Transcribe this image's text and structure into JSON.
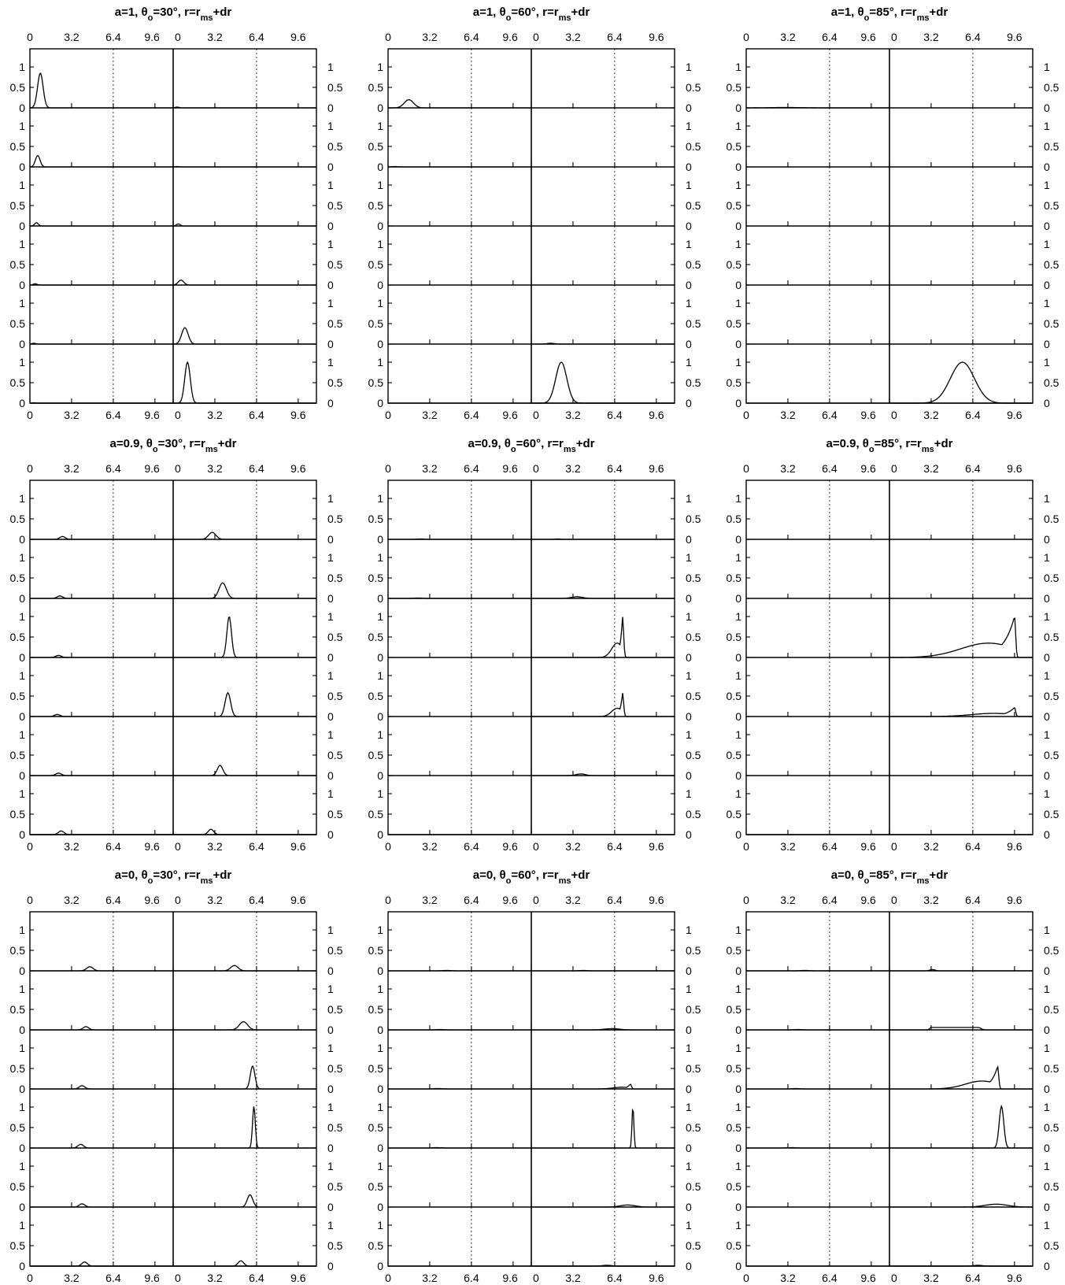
{
  "chart_data": {
    "type": "line",
    "title_template": "a={a}, θo={theta}°, r=rms+dr",
    "x_ticks": [
      "0",
      "3.2",
      "6.4",
      "9.6"
    ],
    "y_ticks": [
      "0",
      "0.5",
      "1"
    ],
    "xlim": [
      0,
      11
    ],
    "ylim": [
      0,
      1.4
    ],
    "gridline_x": 6.4,
    "rows_per_column": 6,
    "panels": [
      {
        "a": "1",
        "theta": "30",
        "title": "a=1, θ",
        "title_sub": "o",
        "title_rest": "=30°, r=r",
        "title_sub2": "ms",
        "title_end": "+dr",
        "curves": {
          "left": [
            [
              0.8,
              0.85,
              0.3
            ],
            [
              0.6,
              0.28,
              0.25
            ],
            [
              0.5,
              0.08,
              0.2
            ],
            [
              0.4,
              0.03,
              0.2
            ],
            [
              0.3,
              0.02,
              0.2
            ],
            [
              0.3,
              0.01,
              0.2
            ]
          ],
          "right": [
            [
              0.3,
              0.02,
              0.2
            ],
            [
              0.3,
              0.01,
              0.2
            ],
            [
              0.4,
              0.05,
              0.2
            ],
            [
              0.6,
              0.12,
              0.3
            ],
            [
              0.9,
              0.4,
              0.35
            ],
            [
              1.1,
              1.0,
              0.3
            ]
          ]
        }
      },
      {
        "a": "1",
        "theta": "60",
        "title": "a=1, θ",
        "title_sub": "o",
        "title_rest": "=60°, r=r",
        "title_sub2": "ms",
        "title_end": "+dr",
        "curves": {
          "left": [
            [
              1.6,
              0.2,
              0.5
            ],
            [
              0.5,
              0.01,
              0.3
            ],
            [
              0,
              0,
              0
            ],
            [
              0,
              0,
              0
            ],
            [
              0,
              0,
              0
            ],
            [
              0,
              0,
              0
            ]
          ],
          "right": [
            [
              0,
              0,
              0
            ],
            [
              0,
              0,
              0
            ],
            [
              0,
              0,
              0
            ],
            [
              0,
              0,
              0
            ],
            [
              1.5,
              0.02,
              0.4
            ],
            [
              2.3,
              1.0,
              0.6
            ]
          ]
        }
      },
      {
        "a": "1",
        "theta": "85",
        "title": "a=1, θ",
        "title_sub": "o",
        "title_rest": "=85°, r=r",
        "title_sub2": "ms",
        "title_end": "+dr",
        "curves": {
          "left": [
            [
              3.0,
              0.01,
              1.5
            ],
            [
              0,
              0,
              0
            ],
            [
              0,
              0,
              0
            ],
            [
              0,
              0,
              0
            ],
            [
              0,
              0,
              0
            ],
            [
              0,
              0,
              0
            ]
          ],
          "right": [
            [
              0,
              0,
              0
            ],
            [
              0,
              0,
              0
            ],
            [
              0,
              0,
              0
            ],
            [
              0,
              0,
              0
            ],
            [
              0,
              0,
              0
            ],
            [
              5.6,
              1.0,
              1.3
            ]
          ]
        }
      },
      {
        "a": "0.9",
        "theta": "30",
        "title": "a=0.9, θ",
        "title_sub": "o",
        "title_rest": "=30°, r=r",
        "title_sub2": "ms",
        "title_end": "+dr",
        "curves": {
          "left": [
            [
              2.5,
              0.07,
              0.3
            ],
            [
              2.3,
              0.06,
              0.3
            ],
            [
              2.2,
              0.05,
              0.3
            ],
            [
              2.1,
              0.05,
              0.3
            ],
            [
              2.2,
              0.06,
              0.3
            ],
            [
              2.4,
              0.09,
              0.3
            ]
          ],
          "right": [
            [
              3.0,
              0.17,
              0.4
            ],
            [
              3.8,
              0.38,
              0.4
            ],
            [
              4.3,
              1.0,
              0.25
            ],
            [
              4.2,
              0.58,
              0.3
            ],
            [
              3.6,
              0.25,
              0.3
            ],
            [
              2.9,
              0.13,
              0.3
            ]
          ]
        }
      },
      {
        "a": "0.9",
        "theta": "60",
        "title": "a=0.9, θ",
        "title_sub": "o",
        "title_rest": "=60°, r=r",
        "title_sub2": "ms",
        "title_end": "+dr",
        "curves": {
          "left": [
            [
              2.5,
              0.01,
              0.4
            ],
            [
              2.3,
              0.01,
              0.4
            ],
            [
              0,
              0,
              0
            ],
            [
              0,
              0,
              0
            ],
            [
              0,
              0,
              0
            ],
            [
              0,
              0,
              0
            ]
          ],
          "right": [
            [
              2.0,
              0.01,
              0.3
            ],
            [
              3.5,
              0.04,
              0.6
            ],
            [
              7.0,
              1.0,
              0.5,
              "skew"
            ],
            [
              7.0,
              0.58,
              0.5,
              "skew"
            ],
            [
              3.8,
              0.04,
              0.5
            ],
            [
              0,
              0,
              0
            ]
          ]
        }
      },
      {
        "a": "0.9",
        "theta": "85",
        "title": "a=0.9, θ",
        "title_sub": "o",
        "title_rest": "=85°, r=r",
        "title_sub2": "ms",
        "title_end": "+dr",
        "curves": {
          "left": [
            [
              0,
              0,
              0
            ],
            [
              0,
              0,
              0
            ],
            [
              0,
              0,
              0
            ],
            [
              0,
              0,
              0
            ],
            [
              0,
              0,
              0
            ],
            [
              0,
              0,
              0
            ]
          ],
          "right": [
            [
              0,
              0,
              0
            ],
            [
              0,
              0,
              0
            ],
            [
              9.6,
              1.0,
              2.5,
              "skew"
            ],
            [
              9.6,
              0.22,
              2.0,
              "skew"
            ],
            [
              0,
              0,
              0
            ],
            [
              0,
              0,
              0
            ]
          ]
        }
      },
      {
        "a": "0",
        "theta": "30",
        "title": "a=0, θ",
        "title_sub": "o",
        "title_rest": "=30°, r=r",
        "title_sub2": "ms",
        "title_end": "+dr",
        "curves": {
          "left": [
            [
              4.6,
              0.1,
              0.35
            ],
            [
              4.3,
              0.08,
              0.3
            ],
            [
              4.0,
              0.08,
              0.3
            ],
            [
              3.9,
              0.09,
              0.3
            ],
            [
              4.0,
              0.08,
              0.3
            ],
            [
              4.2,
              0.1,
              0.3
            ]
          ],
          "right": [
            [
              4.7,
              0.13,
              0.4
            ],
            [
              5.4,
              0.2,
              0.45
            ],
            [
              6.1,
              0.56,
              0.25
            ],
            [
              6.2,
              1.02,
              0.15
            ],
            [
              5.9,
              0.3,
              0.3
            ],
            [
              5.2,
              0.13,
              0.3
            ]
          ]
        }
      },
      {
        "a": "0",
        "theta": "60",
        "title": "a=0, θ",
        "title_sub": "o",
        "title_rest": "=60°, r=r",
        "title_sub2": "ms",
        "title_end": "+dr",
        "curves": {
          "left": [
            [
              4.5,
              0.01,
              0.4
            ],
            [
              4.0,
              0.01,
              0.4
            ],
            [
              3.8,
              0.01,
              0.4
            ],
            [
              3.7,
              0.01,
              0.4
            ],
            [
              0,
              0,
              0
            ],
            [
              0,
              0,
              0
            ]
          ],
          "right": [
            [
              4.0,
              0.01,
              0.4
            ],
            [
              6.2,
              0.03,
              0.8
            ],
            [
              7.6,
              0.12,
              0.8,
              "skew"
            ],
            [
              7.8,
              1.02,
              0.1
            ],
            [
              7.4,
              0.05,
              0.8
            ],
            [
              5.8,
              0.02,
              0.5
            ]
          ]
        }
      },
      {
        "a": "0",
        "theta": "85",
        "title": "a=0, θ",
        "title_sub": "o",
        "title_rest": "=85°, r=r",
        "title_sub2": "ms",
        "title_end": "+dr",
        "curves": {
          "left": [
            [
              4.5,
              0.01,
              0.4
            ],
            [
              4.0,
              0.01,
              0.4
            ],
            [
              3.8,
              0.01,
              0.4
            ],
            [
              3.5,
              0.01,
              0.4
            ],
            [
              0,
              0,
              0
            ],
            [
              0,
              0,
              0
            ]
          ],
          "right": [
            [
              3.3,
              0.03,
              0.3
            ],
            [
              5.0,
              0.06,
              2.0,
              "plateau"
            ],
            [
              8.3,
              0.55,
              1.5,
              "skew"
            ],
            [
              8.6,
              1.02,
              0.25
            ],
            [
              8.2,
              0.07,
              1.2
            ],
            [
              6.8,
              0.02,
              0.5
            ]
          ]
        }
      }
    ]
  }
}
